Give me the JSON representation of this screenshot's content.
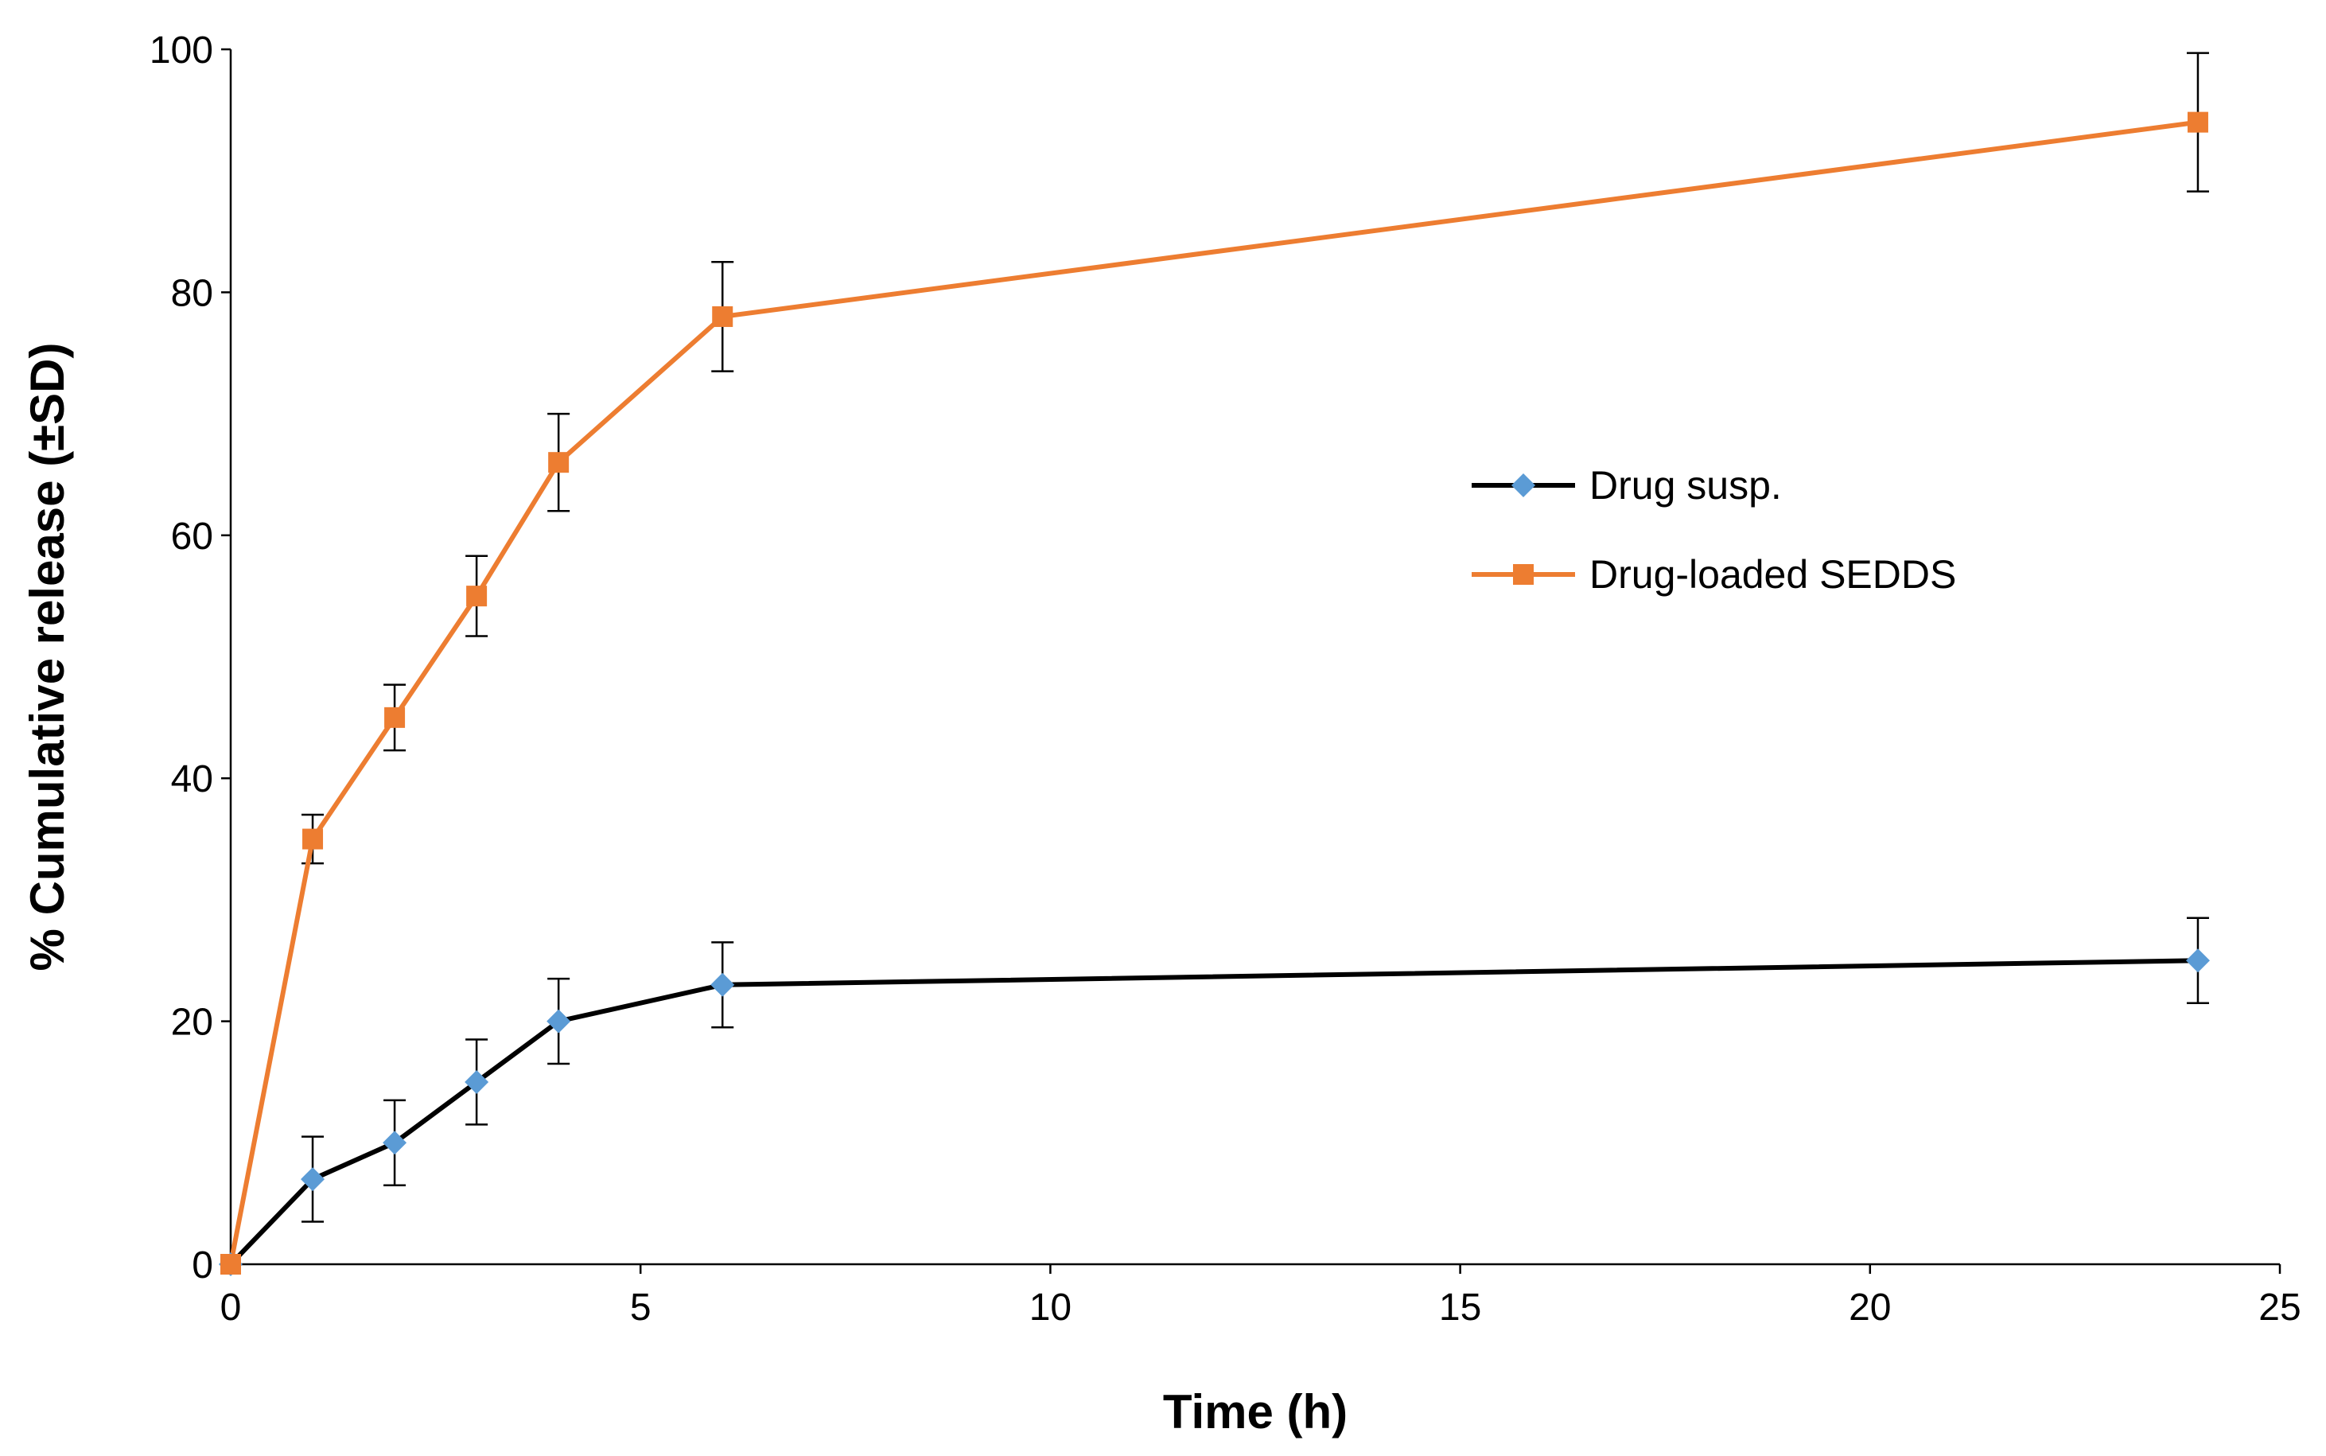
{
  "chart_data": {
    "type": "line",
    "title": "",
    "xlabel": "Time (h)",
    "ylabel": "% Cumulative release  (±SD)",
    "xlim": [
      0,
      25
    ],
    "ylim": [
      0,
      100
    ],
    "xticks": [
      0,
      5,
      10,
      15,
      20,
      25
    ],
    "yticks": [
      0,
      20,
      40,
      60,
      80,
      100
    ],
    "grid": false,
    "legend_position": "center-right",
    "series": [
      {
        "name": "Drug susp.",
        "line_color": "#000000",
        "marker_color": "#5B9BD5",
        "marker": "diamond",
        "x": [
          0,
          1,
          2,
          3,
          4,
          6,
          24
        ],
        "y": [
          0,
          7,
          10,
          15,
          20,
          23,
          25
        ],
        "err": [
          0,
          3.5,
          3.5,
          3.5,
          3.5,
          3.5,
          3.5
        ]
      },
      {
        "name": "Drug-loaded SEDDS",
        "line_color": "#ED7D31",
        "marker_color": "#ED7D31",
        "marker": "square",
        "x": [
          0,
          1,
          2,
          3,
          4,
          6,
          24
        ],
        "y": [
          0,
          35,
          45,
          55,
          66,
          78,
          94
        ],
        "err": [
          0,
          2,
          2.7,
          3.3,
          4,
          4.5,
          5.7
        ]
      }
    ]
  }
}
